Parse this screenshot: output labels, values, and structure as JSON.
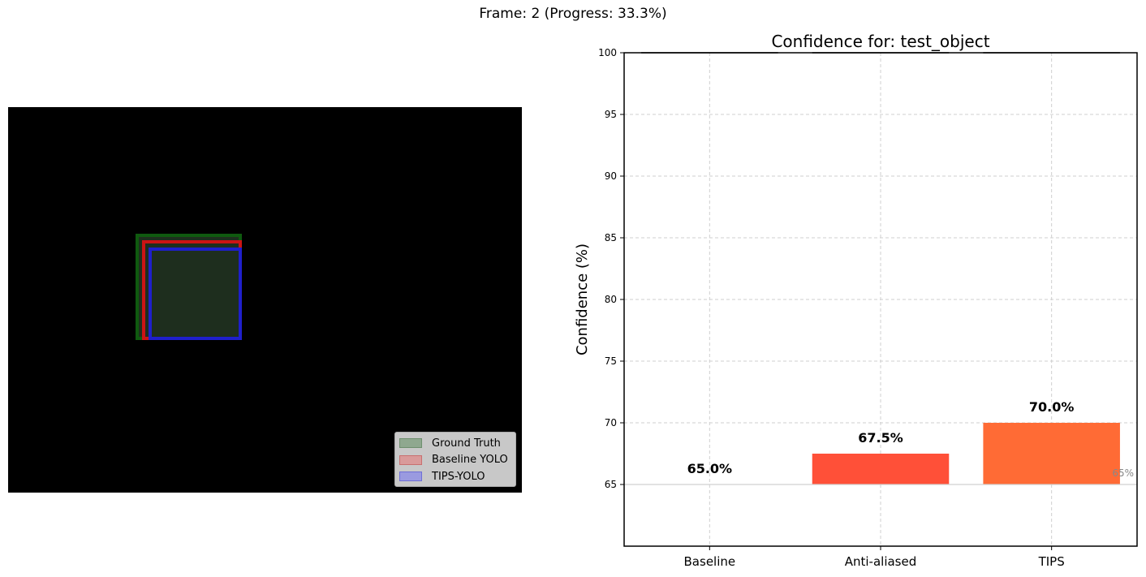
{
  "figure": {
    "suptitle": "Frame: 2 (Progress: 33.3%)"
  },
  "left_panel": {
    "background": "#000000",
    "legend": [
      {
        "label": "Ground Truth",
        "fill": "#8fa88f",
        "edge": "#6e8f6e"
      },
      {
        "label": "Baseline YOLO",
        "fill": "#d99a9a",
        "edge": "#c86f6f"
      },
      {
        "label": "TIPS-YOLO",
        "fill": "#9a9ae0",
        "edge": "#6f6fd6"
      }
    ],
    "box_colors": {
      "ground_truth": "#0f5a0f",
      "baseline": "#cc1414",
      "tips": "#1f1fcc",
      "fill": "#1e2e1e"
    }
  },
  "chart_data": {
    "type": "bar",
    "title": "Confidence for: test_object",
    "xlabel": "",
    "ylabel": "Confidence (%)",
    "categories": [
      "Baseline",
      "Anti-aliased",
      "TIPS"
    ],
    "values": [
      65.0,
      67.5,
      70.0
    ],
    "bar_labels": [
      "65.0%",
      "67.5%",
      "70.0%"
    ],
    "bar_colors": [
      "#ff6a3d",
      "#ff5038",
      "#ff6b35"
    ],
    "baseline_value": 65,
    "baseline_label": "65%",
    "ylim": [
      60,
      100
    ],
    "yticks": [
      65,
      70,
      75,
      80,
      85,
      90,
      95,
      100
    ],
    "grid": true
  }
}
